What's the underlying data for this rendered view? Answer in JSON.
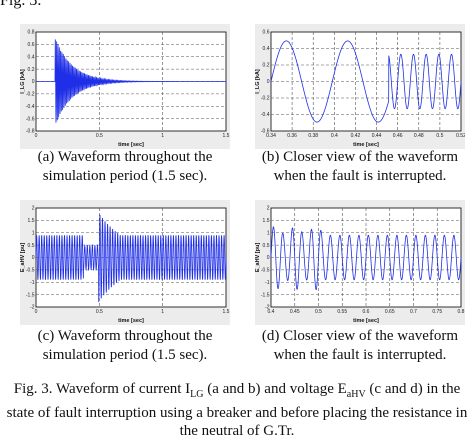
{
  "heading": "Fig. 3.",
  "panels": [
    {
      "id": "a",
      "xlabel": "time [sec]",
      "ylabel": "I_LG [kA]",
      "xticks": [
        "0",
        "0.5",
        "1",
        "1.5"
      ],
      "yticks": [
        "0.8",
        "0.6",
        "0.4",
        "0.2",
        "0",
        "-0.2",
        "-0.4",
        "-0.6",
        "-0.8"
      ],
      "caption_line1": "(a) Waveform throughout the",
      "caption_line2": "simulation period (1.5 sec)."
    },
    {
      "id": "b",
      "xlabel": "time [sec]",
      "ylabel": "I_LG [kA]",
      "xticks": [
        "0.34",
        "0.36",
        "0.38",
        "0.4",
        "0.42",
        "0.44",
        "0.46",
        "0.48",
        "0.5",
        "0.52"
      ],
      "yticks": [
        "0.6",
        "0.4",
        "0.2",
        "0",
        "-0.2",
        "-0.4",
        "-0.6"
      ],
      "caption_line1": "(b) Closer view of the waveform",
      "caption_line2": "when the fault is interrupted."
    },
    {
      "id": "c",
      "xlabel": "time [sec]",
      "ylabel": "E_aHV [pu]",
      "xticks": [
        "0",
        "0.5",
        "1",
        "1.5"
      ],
      "yticks": [
        "2",
        "1.5",
        "1",
        "0.5",
        "0",
        "-0.5",
        "-1",
        "-1.5",
        "-2"
      ],
      "caption_line1": "(c) Waveform throughout the",
      "caption_line2": "simulation period (1.5 sec)."
    },
    {
      "id": "d",
      "xlabel": "time [sec]",
      "ylabel": "E_aHV [pu]",
      "xticks": [
        "0.4",
        "0.45",
        "0.5",
        "0.55",
        "0.6",
        "0.65",
        "0.7",
        "0.75",
        "0.8"
      ],
      "yticks": [
        "2",
        "1.5",
        "1",
        "0.5",
        "0",
        "-0.5",
        "-1",
        "-1.5",
        "-2"
      ],
      "caption_line1": "(d) Closer view of the waveform",
      "caption_line2": "when the fault is interrupted."
    }
  ],
  "figure_caption": {
    "line1_before_sub1": "Fig. 3. Waveform of current I",
    "sub1": "LG",
    "line1_mid": " (a and b) and voltage E",
    "sub2": "aHV",
    "line1_after": " (c and d) in the",
    "line2": "state of fault interruption using a breaker and before placing the resistance in",
    "line3": "the neutral of G.Tr."
  }
}
